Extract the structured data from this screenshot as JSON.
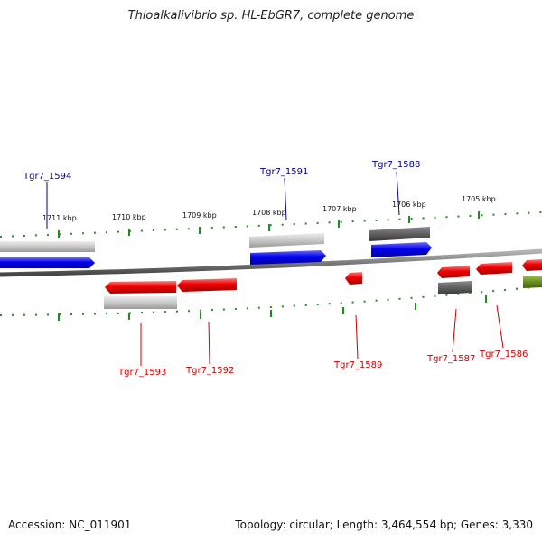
{
  "title": "Thioalkalivibrio sp. HL-EbGR7, complete genome",
  "accession": "Accession: NC_011901",
  "summary": "Topology: circular; Length: 3,464,554 bp; Genes: 3,330",
  "colors": {
    "forward_label": "#00008b",
    "reverse_label": "#cc0000",
    "tick": "#228b22",
    "backbone": "#808080",
    "gene_forward": "#0000ee",
    "gene_reverse": "#ee0000",
    "gene_light": "#c8c8c8",
    "gene_dark": "#606060",
    "gene_other": "#6b8e23"
  },
  "ruler": [
    {
      "label": "1711 kbp"
    },
    {
      "label": "1710 kbp"
    },
    {
      "label": "1709 kbp"
    },
    {
      "label": "1708 kbp"
    },
    {
      "label": "1707 kbp"
    },
    {
      "label": "1706 kbp"
    },
    {
      "label": "1705 kbp"
    }
  ],
  "forward_genes": [
    {
      "name": "Tgr7_1594"
    },
    {
      "name": "Tgr7_1591"
    },
    {
      "name": "Tgr7_1588"
    }
  ],
  "reverse_genes": [
    {
      "name": "Tgr7_1593"
    },
    {
      "name": "Tgr7_1592"
    },
    {
      "name": "Tgr7_1589"
    },
    {
      "name": "Tgr7_1587"
    },
    {
      "name": "Tgr7_1586"
    }
  ]
}
